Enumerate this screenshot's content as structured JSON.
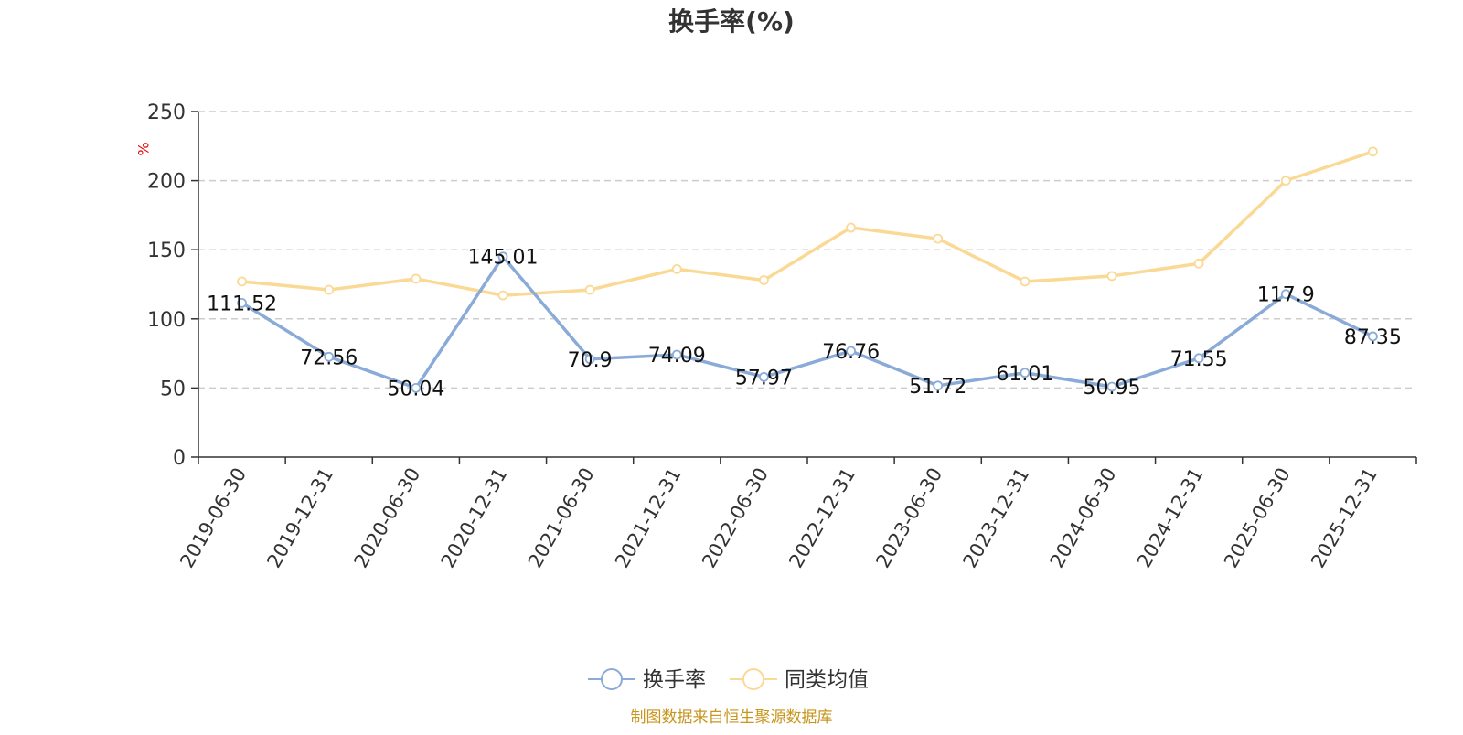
{
  "chart_data": {
    "type": "line",
    "title": "换手率(%)",
    "ylabel_unit": "%",
    "categories": [
      "2019-06-30",
      "2019-12-31",
      "2020-06-30",
      "2020-12-31",
      "2021-06-30",
      "2021-12-31",
      "2022-06-30",
      "2022-12-31",
      "2023-06-30",
      "2023-12-31",
      "2024-06-30",
      "2024-12-31",
      "2025-06-30",
      "2025-12-31"
    ],
    "series": [
      {
        "name": "换手率",
        "color": "#8aabd8",
        "show_labels": true,
        "values": [
          111.52,
          72.56,
          50.04,
          145.01,
          70.9,
          74.09,
          57.97,
          76.76,
          51.72,
          61.01,
          50.95,
          71.55,
          117.9,
          87.35
        ]
      },
      {
        "name": "同类均值",
        "color": "#fad995",
        "show_labels": false,
        "values": [
          127,
          121,
          129,
          117,
          121,
          136,
          128,
          166,
          158,
          127,
          131,
          140,
          200,
          221
        ]
      }
    ],
    "ylim": [
      0,
      250
    ],
    "yticks": [
      0,
      50,
      100,
      150,
      200,
      250
    ],
    "grid": true,
    "legend_position": "bottom-center"
  },
  "source_text": "制图数据来自恒生聚源数据库",
  "colors": {
    "title": "#333333",
    "unit": "#e60000",
    "source": "#c8961e",
    "grid": "#cccccc",
    "axis": "#333333"
  }
}
